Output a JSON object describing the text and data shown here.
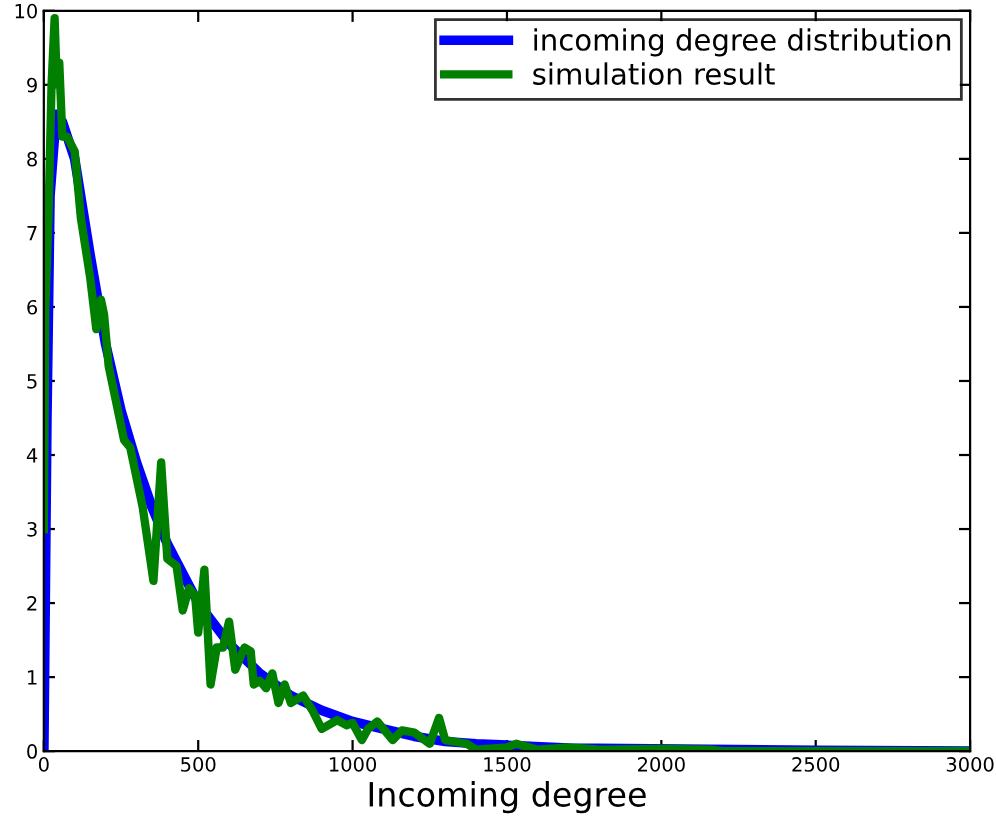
{
  "chart_data": {
    "type": "line",
    "xlabel": "Incoming degree",
    "xlim": [
      0,
      3000
    ],
    "xticks": [
      0,
      500,
      1000,
      1500,
      2000,
      2500,
      3000
    ],
    "ylim": [
      0,
      10
    ],
    "yticks": [
      0,
      1,
      2,
      3,
      4,
      5,
      6,
      7,
      8,
      9,
      10
    ],
    "grid": false,
    "legend": "top right",
    "series": [
      {
        "name": "incoming degree distribution",
        "color": "#0000ff",
        "x": [
          0,
          10,
          20,
          40,
          60,
          100,
          150,
          200,
          250,
          300,
          350,
          400,
          450,
          500,
          600,
          700,
          800,
          900,
          1000,
          1100,
          1200,
          1300,
          1400,
          1500,
          1700,
          2500,
          3000
        ],
        "values": [
          0,
          4.5,
          7.5,
          8.6,
          8.5,
          8.0,
          6.7,
          5.5,
          4.6,
          3.9,
          3.3,
          2.8,
          2.4,
          2.0,
          1.45,
          1.05,
          0.75,
          0.55,
          0.4,
          0.3,
          0.2,
          0.13,
          0.1,
          0.08,
          0.04,
          0.01,
          0
        ]
      },
      {
        "name": "simulation result",
        "color": "#007f00",
        "x": [
          0,
          5,
          15,
          25,
          35,
          42,
          50,
          60,
          75,
          100,
          120,
          150,
          170,
          185,
          195,
          210,
          260,
          280,
          320,
          355,
          380,
          400,
          430,
          450,
          470,
          490,
          500,
          520,
          540,
          560,
          580,
          600,
          620,
          650,
          670,
          680,
          700,
          720,
          740,
          760,
          780,
          800,
          840,
          870,
          900,
          950,
          980,
          1000,
          1030,
          1050,
          1080,
          1130,
          1160,
          1200,
          1250,
          1280,
          1300,
          1370,
          1400,
          1500,
          1530,
          1600,
          1700,
          1800,
          2000,
          2160,
          2200,
          3000
        ],
        "values": [
          3.0,
          6.0,
          7.2,
          9.0,
          9.9,
          9.0,
          9.3,
          8.3,
          8.3,
          8.1,
          7.2,
          6.4,
          5.7,
          6.1,
          5.9,
          5.2,
          4.2,
          4.1,
          3.3,
          2.3,
          3.9,
          2.6,
          2.5,
          1.9,
          2.2,
          2.1,
          1.6,
          2.45,
          0.9,
          1.4,
          1.4,
          1.75,
          1.1,
          1.4,
          1.35,
          0.9,
          0.95,
          0.85,
          1.05,
          0.65,
          0.9,
          0.65,
          0.75,
          0.55,
          0.3,
          0.42,
          0.35,
          0.38,
          0.15,
          0.3,
          0.4,
          0.15,
          0.28,
          0.25,
          0.1,
          0.45,
          0.15,
          0.1,
          0.02,
          0.05,
          0.1,
          0.02,
          0.05,
          0.02,
          0.03,
          0.02,
          0,
          0
        ]
      }
    ]
  }
}
